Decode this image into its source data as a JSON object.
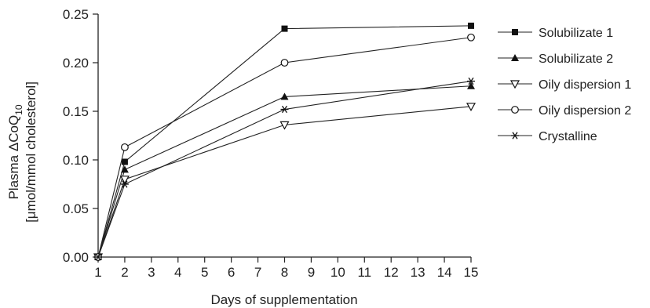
{
  "chart_data": {
    "type": "line",
    "xlabel": "Days of supplementation",
    "ylabel_line1": "Plasma ΔCoQ",
    "ylabel_sub": "10",
    "ylabel_line2": "[μmol/mmol cholesterol]",
    "xlim": [
      1,
      15
    ],
    "ylim": [
      0,
      0.25
    ],
    "x_ticks": [
      1,
      2,
      3,
      4,
      5,
      6,
      7,
      8,
      9,
      10,
      11,
      12,
      13,
      14,
      15
    ],
    "y_ticks": [
      "0.00",
      "0.05",
      "0.10",
      "0.15",
      "0.20",
      "0.25"
    ],
    "grid": false,
    "legend_position": "right",
    "series": [
      {
        "name": "Solubilizate 1",
        "marker": "filled-square",
        "x": [
          1,
          2,
          8,
          15
        ],
        "y": [
          0.0,
          0.098,
          0.235,
          0.238
        ]
      },
      {
        "name": "Solubilizate 2",
        "marker": "filled-triangle-up",
        "x": [
          1,
          2,
          8,
          15
        ],
        "y": [
          0.0,
          0.09,
          0.165,
          0.176
        ]
      },
      {
        "name": "Oily dispersion 1",
        "marker": "open-triangle-down",
        "x": [
          1,
          2,
          8,
          15
        ],
        "y": [
          0.0,
          0.08,
          0.136,
          0.155
        ]
      },
      {
        "name": "Oily dispersion 2",
        "marker": "open-circle",
        "x": [
          1,
          2,
          8,
          15
        ],
        "y": [
          0.0,
          0.113,
          0.2,
          0.226
        ]
      },
      {
        "name": "Crystalline",
        "marker": "asterisk",
        "x": [
          1,
          2,
          8,
          15
        ],
        "y": [
          0.0,
          0.075,
          0.152,
          0.181
        ]
      }
    ]
  }
}
